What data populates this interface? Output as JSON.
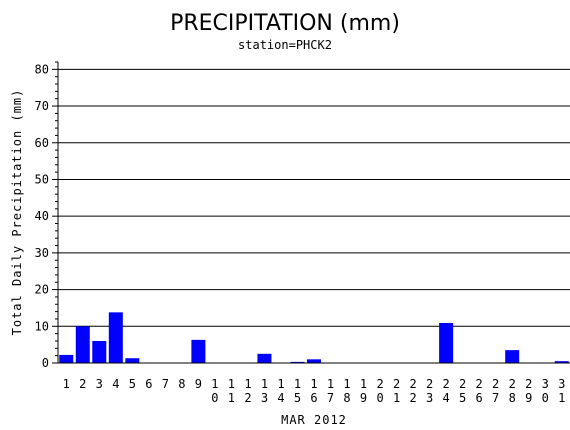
{
  "chart_data": {
    "type": "bar",
    "title": "PRECIPITATION (mm)",
    "subtitle": "station=PHCK2",
    "xlabel": "MAR 2012",
    "ylabel": "Total Daily Precipitation (mm)",
    "ylim": [
      0,
      82
    ],
    "yticks": [
      0,
      10,
      20,
      30,
      40,
      50,
      60,
      70,
      80
    ],
    "grid": true,
    "bar_color": "#0000ff",
    "categories": [
      "1",
      "2",
      "3",
      "4",
      "5",
      "6",
      "7",
      "8",
      "9",
      "10",
      "11",
      "12",
      "13",
      "14",
      "15",
      "16",
      "17",
      "18",
      "19",
      "20",
      "21",
      "22",
      "23",
      "24",
      "25",
      "26",
      "27",
      "28",
      "29",
      "30",
      "31"
    ],
    "values": [
      2.2,
      10.0,
      6.0,
      13.8,
      1.3,
      0,
      0,
      0,
      6.3,
      0,
      0,
      0,
      2.5,
      0,
      0.3,
      1.0,
      0,
      0,
      0,
      0,
      0,
      0,
      0,
      10.9,
      0,
      0,
      0,
      3.5,
      0,
      0,
      0.5
    ]
  }
}
